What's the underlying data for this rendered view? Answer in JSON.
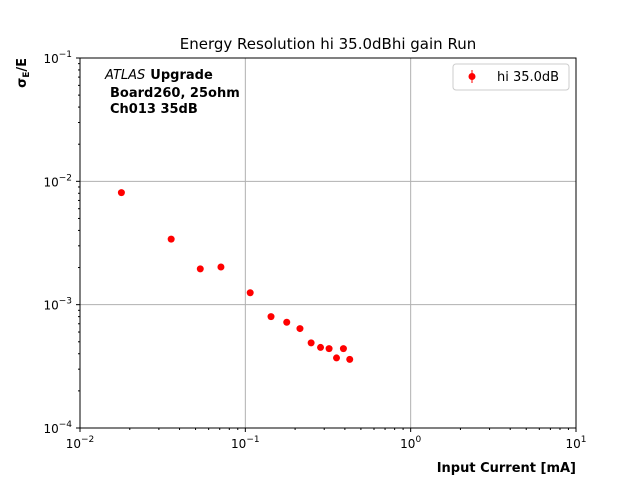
{
  "chart_data": {
    "type": "scatter",
    "title": "Energy Resolution hi 35.0dBhi gain Run",
    "xlabel": "Input Current [mA]",
    "ylabel": "σ_E/E",
    "xscale": "log",
    "yscale": "log",
    "xlim": [
      0.01,
      10
    ],
    "ylim": [
      0.0001,
      0.1
    ],
    "grid": true,
    "x_ticks": [
      {
        "value": 0.01,
        "base": "10",
        "exp": "−2"
      },
      {
        "value": 0.1,
        "base": "10",
        "exp": "−1"
      },
      {
        "value": 1,
        "base": "10",
        "exp": "0"
      },
      {
        "value": 10,
        "base": "10",
        "exp": "1"
      }
    ],
    "y_ticks": [
      {
        "value": 0.0001,
        "base": "10",
        "exp": "−4"
      },
      {
        "value": 0.001,
        "base": "10",
        "exp": "−3"
      },
      {
        "value": 0.01,
        "base": "10",
        "exp": "−2"
      },
      {
        "value": 0.1,
        "base": "10",
        "exp": "−1"
      }
    ],
    "annotation": {
      "italic": "ATLAS",
      "bold": "Upgrade",
      "line2": "Board260, 25ohm",
      "line3": "Ch013 35dB"
    },
    "legend_position": "top-right",
    "series": [
      {
        "name": "hi 35.0dB",
        "color": "#ff0000",
        "x": [
          0.0178,
          0.0356,
          0.0534,
          0.0712,
          0.107,
          0.143,
          0.178,
          0.214,
          0.25,
          0.285,
          0.321,
          0.356,
          0.392,
          0.428
        ],
        "y": [
          0.0081,
          0.0034,
          0.00195,
          0.00202,
          0.00125,
          0.0008,
          0.00072,
          0.00064,
          0.00049,
          0.00045,
          0.00044,
          0.00037,
          0.00044,
          0.00036
        ]
      }
    ]
  }
}
